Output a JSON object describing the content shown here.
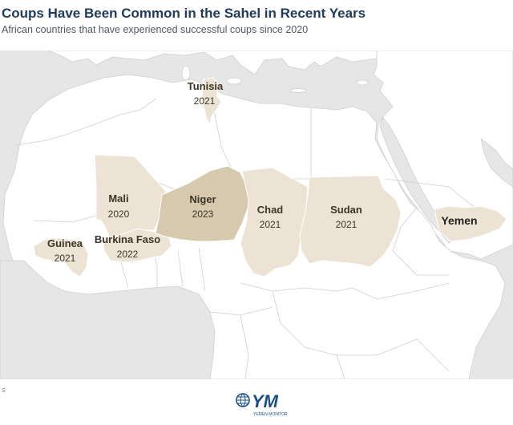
{
  "header": {
    "title": "Coups Have Been Common in the Sahel in Recent Years",
    "subtitle": "African countries that have experienced successful coups since 2020"
  },
  "colors": {
    "sea": "#e6e6e6",
    "land": "#ffffff",
    "coup_light": "#ece3d4",
    "coup_dark": "#d6c9ad",
    "border": "#cfcfcf",
    "logo_blue": "#1b4f8a"
  },
  "countries": [
    {
      "id": "tunisia",
      "name": "Tunisia",
      "year": "2021"
    },
    {
      "id": "mali",
      "name": "Mali",
      "year": "2020"
    },
    {
      "id": "niger",
      "name": "Niger",
      "year": "2023"
    },
    {
      "id": "chad",
      "name": "Chad",
      "year": "2021"
    },
    {
      "id": "sudan",
      "name": "Sudan",
      "year": "2021"
    },
    {
      "id": "guinea",
      "name": "Guinea",
      "year": "2021"
    },
    {
      "id": "burkina",
      "name": "Burkina Faso",
      "year": "2022"
    },
    {
      "id": "yemen",
      "name": "Yemen",
      "year": ""
    }
  ],
  "footer": {
    "footnote_mark": "S",
    "logo_icon": "globe-icon",
    "logo_text": "YM",
    "logo_caption": "YEMEN MONITOR"
  }
}
